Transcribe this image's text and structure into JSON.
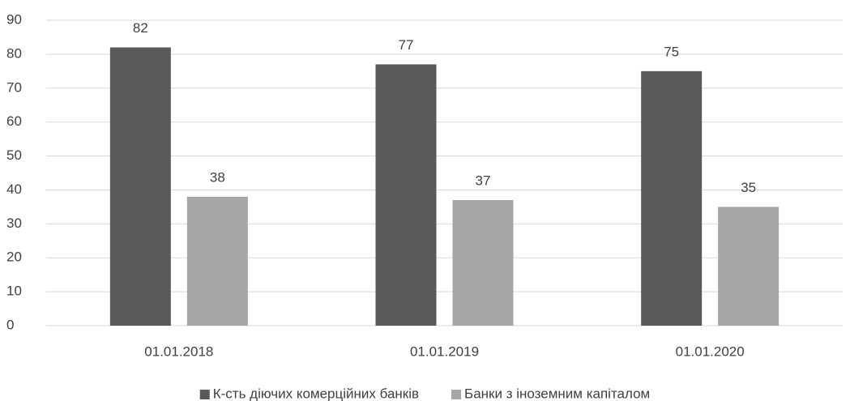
{
  "chart_data": {
    "type": "bar",
    "categories": [
      "01.01.2018",
      "01.01.2019",
      "01.01.2020"
    ],
    "series": [
      {
        "name": "К-сть діючих комерційних банків",
        "color": "#595959",
        "values": [
          82,
          77,
          75
        ]
      },
      {
        "name": "Банки з іноземним капіталом",
        "color": "#a6a6a6",
        "values": [
          38,
          37,
          35
        ]
      }
    ],
    "ylim": [
      0,
      90
    ],
    "yticks": [
      0,
      10,
      20,
      30,
      40,
      50,
      60,
      70,
      80,
      90
    ],
    "grid": true,
    "legend": "bottom"
  }
}
